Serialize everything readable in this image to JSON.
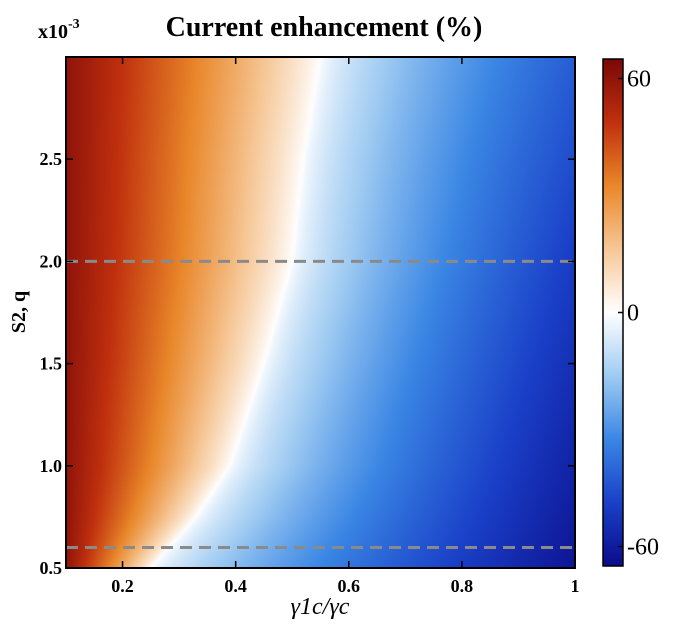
{
  "chart_data": {
    "type": "heatmap",
    "title": "Current enhancement (%)",
    "multiplier_base": "x10",
    "multiplier_exp": "-3",
    "xlabel": "γ1c/γc",
    "ylabel": "S2, q",
    "xlim": [
      0.1,
      1.0
    ],
    "ylim": [
      0.5,
      3.0
    ],
    "x_ticks": [
      0.2,
      0.4,
      0.6,
      0.8,
      1.0
    ],
    "x_tick_labels": [
      "0.2",
      "0.4",
      "0.6",
      "0.8",
      "1"
    ],
    "y_ticks": [
      0.5,
      1.0,
      1.5,
      2.0,
      2.5
    ],
    "y_tick_labels": [
      "0.5",
      "1.0",
      "1.5",
      "2.0",
      "2.5"
    ],
    "colorbar": {
      "range": [
        -65,
        65
      ],
      "ticks": [
        60,
        0,
        -60
      ],
      "tick_labels": [
        "60",
        "0",
        "-60"
      ],
      "colors": [
        "#0b0c8a",
        "#1a40c8",
        "#3a86e4",
        "#9fcbf2",
        "#ffffff",
        "#f6c796",
        "#e9872a",
        "#c0300e",
        "#7a0808"
      ]
    },
    "zero_contour": [
      {
        "y": 0.5,
        "x": 0.25
      },
      {
        "y": 0.75,
        "x": 0.33
      },
      {
        "y": 1.0,
        "x": 0.39
      },
      {
        "y": 1.5,
        "x": 0.45
      },
      {
        "y": 2.0,
        "x": 0.5
      },
      {
        "y": 2.5,
        "x": 0.52
      },
      {
        "y": 3.0,
        "x": 0.55
      }
    ],
    "value_left_edge": 60,
    "value_right_edge_low_y": -62,
    "value_right_edge_high_y": -42,
    "reference_lines": [
      {
        "y": 2.0,
        "style": "dashed",
        "color": "#8a8a8a"
      },
      {
        "y": 0.6,
        "style": "dashed",
        "color": "#8a8a8a"
      }
    ]
  }
}
